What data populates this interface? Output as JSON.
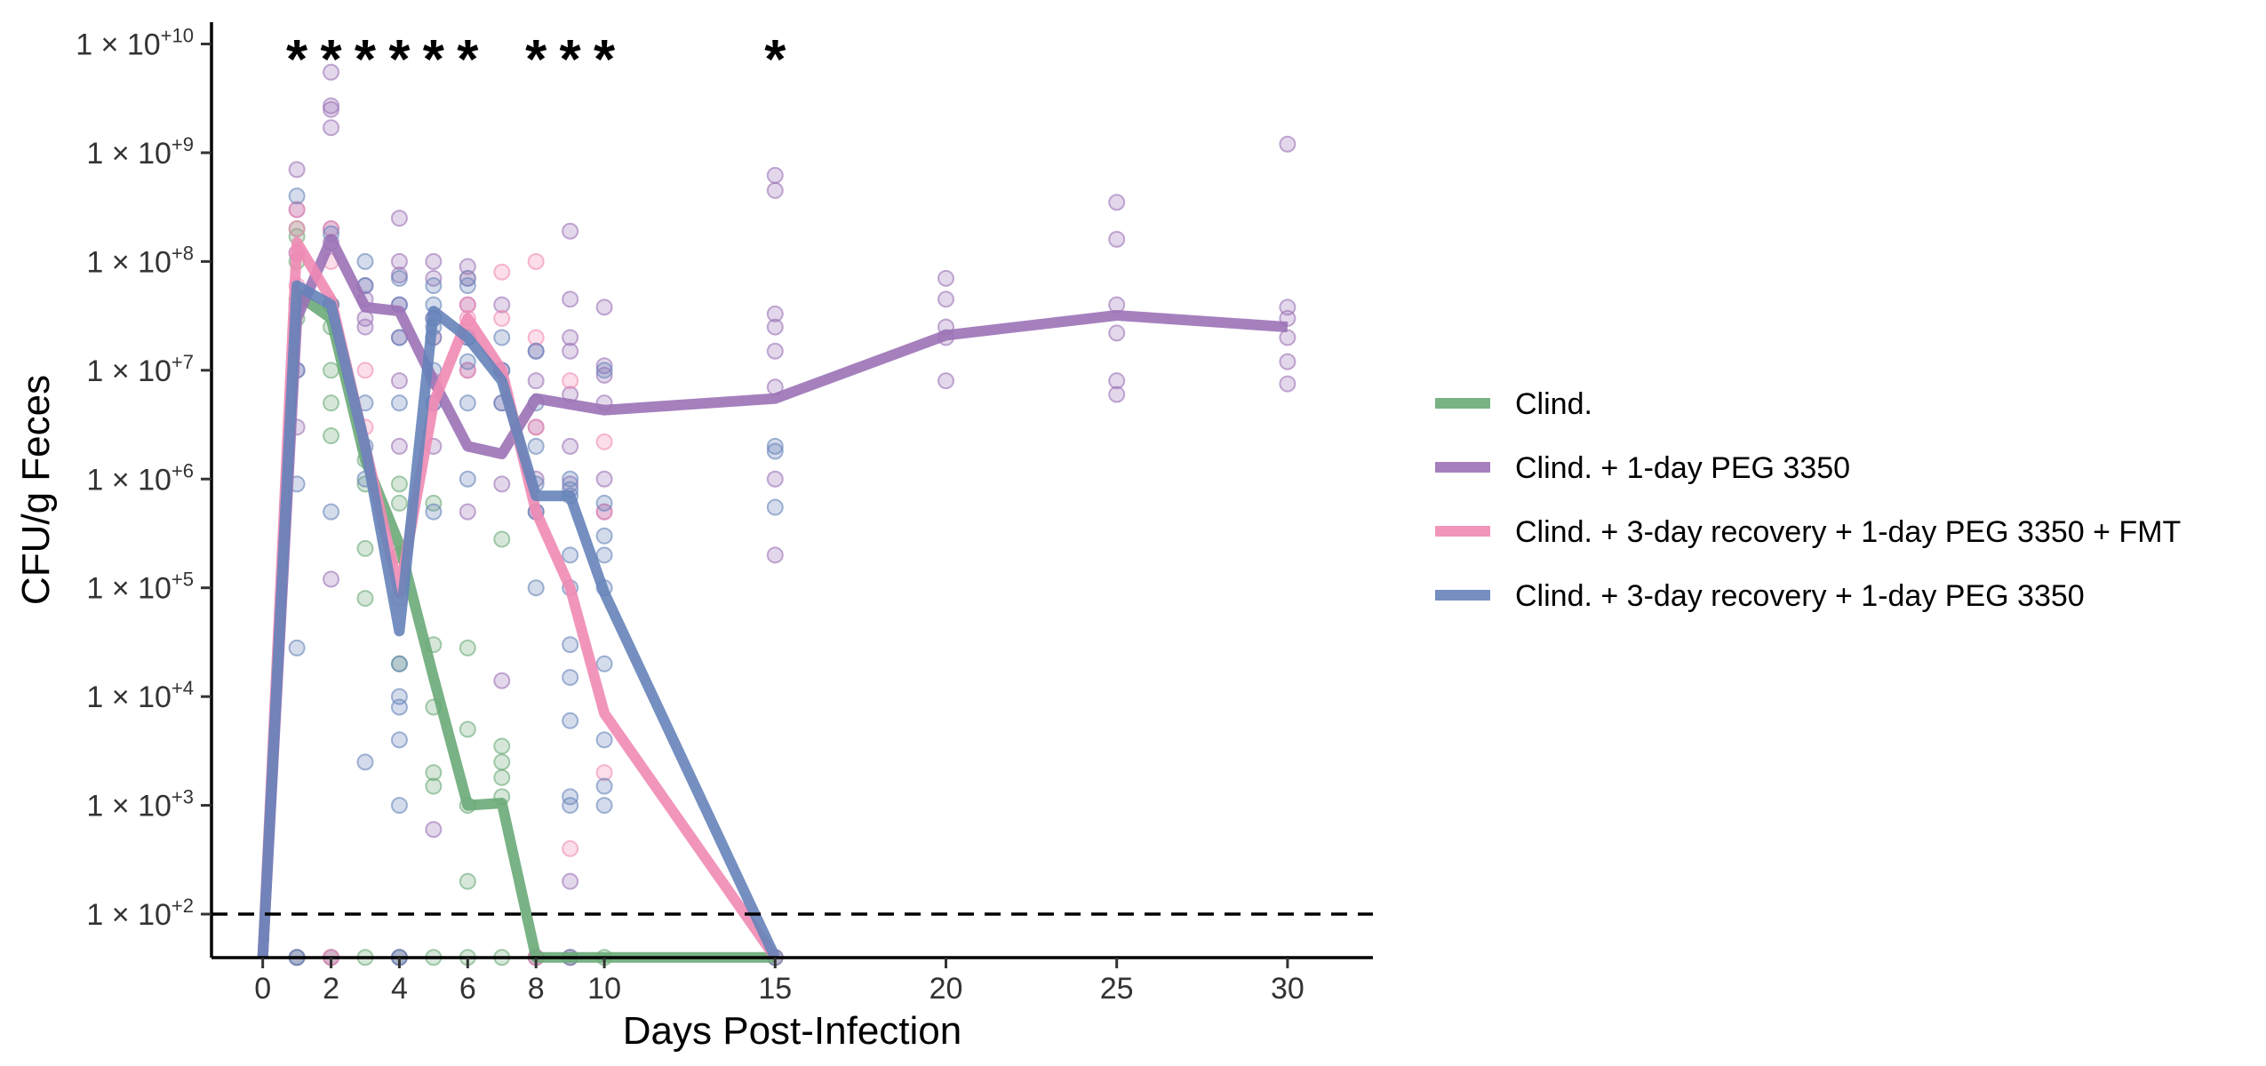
{
  "chart_data": {
    "type": "line",
    "xlabel": "Days Post-Infection",
    "ylabel": "CFU/g Feces",
    "xlim": [
      -1.5,
      32.5
    ],
    "ylim_log10": [
      1.6,
      10.2
    ],
    "y_scale": "log",
    "x_ticks": [
      0,
      2,
      4,
      6,
      8,
      10,
      15,
      20,
      25,
      30
    ],
    "y_ticks": [
      {
        "exp": 2,
        "label": "1 × 10",
        "sup": "+2"
      },
      {
        "exp": 3,
        "label": "1 × 10",
        "sup": "+3"
      },
      {
        "exp": 4,
        "label": "1 × 10",
        "sup": "+4"
      },
      {
        "exp": 5,
        "label": "1 × 10",
        "sup": "+5"
      },
      {
        "exp": 6,
        "label": "1 × 10",
        "sup": "+6"
      },
      {
        "exp": 7,
        "label": "1 × 10",
        "sup": "+7"
      },
      {
        "exp": 8,
        "label": "1 × 10",
        "sup": "+8"
      },
      {
        "exp": 9,
        "label": "1 × 10",
        "sup": "+9"
      },
      {
        "exp": 10,
        "label": "1 × 10",
        "sup": "+10"
      }
    ],
    "detection_limit": 100,
    "below_limit_value": 40,
    "significance_markers": {
      "text": "*",
      "days": [
        1,
        2,
        3,
        4,
        5,
        6,
        8,
        9,
        10,
        15
      ]
    },
    "legend": {
      "position": "right"
    },
    "grid": false,
    "series": [
      {
        "name": "Clind.",
        "color": "#6aaa78",
        "median": {
          "x": [
            0,
            1,
            2,
            3,
            4,
            5,
            6,
            7,
            8,
            9,
            10,
            15
          ],
          "y": [
            40,
            50000000,
            30000000,
            1500000,
            250000,
            15000,
            1000,
            1050,
            40,
            40,
            40,
            40
          ]
        },
        "points": [
          [
            1,
            200000000
          ],
          [
            1,
            170000000
          ],
          [
            1,
            100000000
          ],
          [
            1,
            45000000
          ],
          [
            1,
            30000000
          ],
          [
            2,
            40000000
          ],
          [
            2,
            25000000
          ],
          [
            2,
            10000000
          ],
          [
            2,
            5000000
          ],
          [
            2,
            2500000
          ],
          [
            3,
            1500000
          ],
          [
            3,
            900000
          ],
          [
            3,
            230000
          ],
          [
            3,
            80000
          ],
          [
            4,
            900000
          ],
          [
            4,
            600000
          ],
          [
            4,
            200000
          ],
          [
            4,
            20000
          ],
          [
            5,
            600000
          ],
          [
            5,
            30000
          ],
          [
            5,
            8000
          ],
          [
            5,
            2000
          ],
          [
            5,
            1500
          ],
          [
            6,
            28000
          ],
          [
            6,
            5000
          ],
          [
            6,
            1000
          ],
          [
            6,
            200
          ],
          [
            7,
            280000
          ],
          [
            7,
            3500
          ],
          [
            7,
            2500
          ],
          [
            7,
            1800
          ],
          [
            7,
            1200
          ],
          [
            1,
            40
          ],
          [
            2,
            40
          ],
          [
            3,
            40
          ],
          [
            4,
            40
          ],
          [
            5,
            40
          ],
          [
            6,
            40
          ],
          [
            7,
            40
          ],
          [
            8,
            40
          ],
          [
            9,
            40
          ],
          [
            10,
            40
          ],
          [
            15,
            40
          ]
        ]
      },
      {
        "name": "Clind. + 1-day PEG 3350",
        "color": "#9b72b6",
        "median": {
          "x": [
            0,
            1,
            2,
            3,
            4,
            5,
            6,
            7,
            8,
            10,
            15,
            20,
            25,
            30
          ],
          "y": [
            40,
            30000000,
            160000000,
            38000000,
            35000000,
            8000000,
            2000000,
            1700000,
            5500000,
            4300000,
            5500000,
            21000000,
            32000000,
            25000000
          ]
        },
        "points": [
          [
            1,
            700000000
          ],
          [
            1,
            300000000
          ],
          [
            1,
            120000000
          ],
          [
            1,
            10000000
          ],
          [
            1,
            3000000
          ],
          [
            2,
            5500000000
          ],
          [
            2,
            2700000000
          ],
          [
            2,
            2500000000
          ],
          [
            2,
            1700000000
          ],
          [
            2,
            200000000
          ],
          [
            2,
            150000000
          ],
          [
            2,
            120000
          ],
          [
            3,
            60000000
          ],
          [
            3,
            45000000
          ],
          [
            3,
            30000000
          ],
          [
            3,
            25000000
          ],
          [
            4,
            250000000
          ],
          [
            4,
            100000000
          ],
          [
            4,
            75000000
          ],
          [
            4,
            40000000
          ],
          [
            4,
            20000000
          ],
          [
            4,
            8000000
          ],
          [
            4,
            2000000
          ],
          [
            5,
            100000000
          ],
          [
            5,
            70000000
          ],
          [
            5,
            30000000
          ],
          [
            5,
            5000000
          ],
          [
            5,
            2000000
          ],
          [
            5,
            600
          ],
          [
            6,
            90000000
          ],
          [
            6,
            40000000
          ],
          [
            6,
            20000000
          ],
          [
            6,
            10000000
          ],
          [
            6,
            500000
          ],
          [
            7,
            40000000
          ],
          [
            7,
            10000000
          ],
          [
            7,
            5000000
          ],
          [
            7,
            900000
          ],
          [
            7,
            14000
          ],
          [
            8,
            15000000
          ],
          [
            8,
            8000000
          ],
          [
            8,
            3000000
          ],
          [
            8,
            1000000
          ],
          [
            8,
            500000
          ],
          [
            9,
            190000000
          ],
          [
            9,
            45000000
          ],
          [
            9,
            20000000
          ],
          [
            9,
            15000000
          ],
          [
            9,
            6000000
          ],
          [
            9,
            2000000
          ],
          [
            9,
            900000
          ],
          [
            9,
            200
          ],
          [
            10,
            38000000
          ],
          [
            10,
            11000000
          ],
          [
            10,
            9000000
          ],
          [
            10,
            5000000
          ],
          [
            10,
            1000000
          ],
          [
            10,
            500000
          ],
          [
            15,
            620000000
          ],
          [
            15,
            450000000
          ],
          [
            15,
            33000000
          ],
          [
            15,
            25000000
          ],
          [
            15,
            15000000
          ],
          [
            15,
            7000000
          ],
          [
            15,
            1000000
          ],
          [
            15,
            200000
          ],
          [
            20,
            70000000
          ],
          [
            20,
            45000000
          ],
          [
            20,
            25000000
          ],
          [
            20,
            20000000
          ],
          [
            20,
            8000000
          ],
          [
            25,
            350000000
          ],
          [
            25,
            160000000
          ],
          [
            25,
            40000000
          ],
          [
            25,
            22000000
          ],
          [
            25,
            8000000
          ],
          [
            25,
            6000000
          ],
          [
            30,
            1200000000
          ],
          [
            30,
            38000000
          ],
          [
            30,
            30000000
          ],
          [
            30,
            20000000
          ],
          [
            30,
            12000000
          ],
          [
            30,
            7500000
          ],
          [
            1,
            40
          ],
          [
            2,
            40
          ],
          [
            4,
            40
          ],
          [
            8,
            40
          ]
        ]
      },
      {
        "name": "Clind. + 3-day recovery + 1-day PEG 3350 + FMT",
        "color": "#f08ab4",
        "median": {
          "x": [
            0,
            1,
            2,
            3,
            4,
            5,
            6,
            7,
            8,
            9,
            10,
            15
          ],
          "y": [
            40,
            150000000,
            45000000,
            2000000,
            90000,
            5000000,
            30000000,
            10000000,
            500000,
            100000,
            7000,
            40
          ]
        },
        "points": [
          [
            1,
            300000000
          ],
          [
            1,
            200000000
          ],
          [
            1,
            120000000
          ],
          [
            1,
            60000000
          ],
          [
            2,
            200000000
          ],
          [
            2,
            100000000
          ],
          [
            2,
            40000000
          ],
          [
            3,
            10000000
          ],
          [
            3,
            3000000
          ],
          [
            4,
            200000
          ],
          [
            4,
            80000
          ],
          [
            5,
            20000000
          ],
          [
            5,
            8000000
          ],
          [
            6,
            70000000
          ],
          [
            6,
            40000000
          ],
          [
            6,
            30000000
          ],
          [
            6,
            10000000
          ],
          [
            7,
            80000000
          ],
          [
            7,
            30000000
          ],
          [
            8,
            100000000
          ],
          [
            8,
            20000000
          ],
          [
            8,
            3000000
          ],
          [
            9,
            8000000
          ],
          [
            9,
            400
          ],
          [
            10,
            2200000
          ],
          [
            10,
            500000
          ],
          [
            10,
            2000
          ],
          [
            2,
            40
          ],
          [
            8,
            40
          ],
          [
            9,
            40
          ],
          [
            15,
            40
          ]
        ]
      },
      {
        "name": "Clind. + 3-day recovery + 1-day PEG 3350",
        "color": "#6583b9",
        "median": {
          "x": [
            0,
            1,
            2,
            3,
            4,
            5,
            6,
            7,
            8,
            9,
            10,
            15
          ],
          "y": [
            40,
            60000000,
            40000000,
            2000000,
            40000,
            35000000,
            20000000,
            8000000,
            700000,
            700000,
            90000,
            40
          ]
        },
        "points": [
          [
            1,
            400000000
          ],
          [
            1,
            40000000
          ],
          [
            1,
            10000000
          ],
          [
            1,
            900000
          ],
          [
            1,
            28000
          ],
          [
            2,
            180000000
          ],
          [
            2,
            40000000
          ],
          [
            2,
            500000
          ],
          [
            3,
            100000000
          ],
          [
            3,
            60000000
          ],
          [
            3,
            5000000
          ],
          [
            3,
            2000000
          ],
          [
            3,
            1000000
          ],
          [
            3,
            2500
          ],
          [
            4,
            70000000
          ],
          [
            4,
            40000000
          ],
          [
            4,
            20000000
          ],
          [
            4,
            5000000
          ],
          [
            4,
            20000
          ],
          [
            4,
            10000
          ],
          [
            4,
            8000
          ],
          [
            4,
            4000
          ],
          [
            4,
            1000
          ],
          [
            5,
            60000000
          ],
          [
            5,
            40000000
          ],
          [
            5,
            30000000
          ],
          [
            5,
            25000000
          ],
          [
            5,
            20000000
          ],
          [
            5,
            10000000
          ],
          [
            5,
            5000000
          ],
          [
            5,
            500000
          ],
          [
            6,
            70000000
          ],
          [
            6,
            60000000
          ],
          [
            6,
            20000000
          ],
          [
            6,
            12000000
          ],
          [
            6,
            5000000
          ],
          [
            6,
            1000000
          ],
          [
            7,
            20000000
          ],
          [
            7,
            10000000
          ],
          [
            7,
            5000000
          ],
          [
            8,
            15000000
          ],
          [
            8,
            5000000
          ],
          [
            8,
            2000000
          ],
          [
            8,
            900000
          ],
          [
            8,
            500000
          ],
          [
            8,
            100000
          ],
          [
            9,
            1000000
          ],
          [
            9,
            800000
          ],
          [
            9,
            700000
          ],
          [
            9,
            200000
          ],
          [
            9,
            100000
          ],
          [
            9,
            30000
          ],
          [
            9,
            15000
          ],
          [
            9,
            6000
          ],
          [
            9,
            1200
          ],
          [
            9,
            1000
          ],
          [
            10,
            10000000
          ],
          [
            10,
            600000
          ],
          [
            10,
            300000
          ],
          [
            10,
            200000
          ],
          [
            10,
            100000
          ],
          [
            10,
            20000
          ],
          [
            10,
            4000
          ],
          [
            10,
            1500
          ],
          [
            10,
            1000
          ],
          [
            15,
            2000000
          ],
          [
            15,
            1800000
          ],
          [
            15,
            550000
          ],
          [
            1,
            40
          ],
          [
            4,
            40
          ],
          [
            9,
            40
          ],
          [
            15,
            40
          ]
        ]
      }
    ]
  }
}
